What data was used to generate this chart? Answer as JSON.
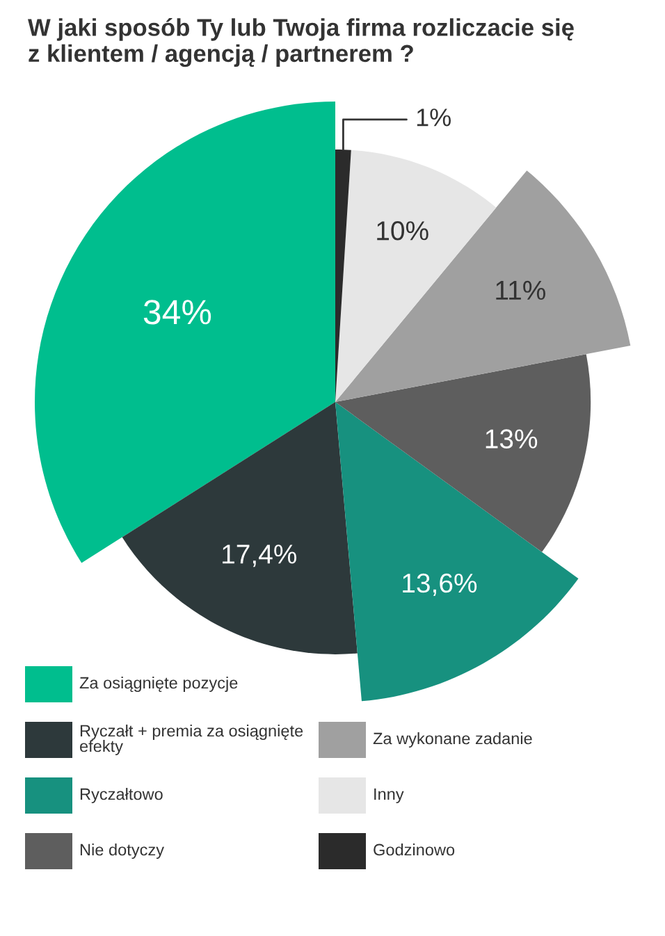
{
  "chart_data": {
    "type": "pie",
    "title": "W jaki sposób Ty lub Twoja firma rozliczacie się\nz klientem / agencją / partnerem ?",
    "categories": [
      "Za osiągnięte pozycje",
      "Ryczałt + premia za osiągnięte efekty",
      "Ryczałtowo",
      "Nie dotyczy",
      "Za wykonane zadanie",
      "Inny",
      "Godzinowo"
    ],
    "values": [
      34,
      17.4,
      13.6,
      13,
      11,
      10,
      1
    ],
    "colors": [
      "#00be8e",
      "#2d393b",
      "#17917f",
      "#5e5e5e",
      "#a0a0a0",
      "#e6e6e6",
      "#2b2b2b"
    ],
    "value_labels": [
      "34%",
      "17,4%",
      "13,6%",
      "13%",
      "11%",
      "10%",
      "1%"
    ],
    "legend": "bottom"
  }
}
